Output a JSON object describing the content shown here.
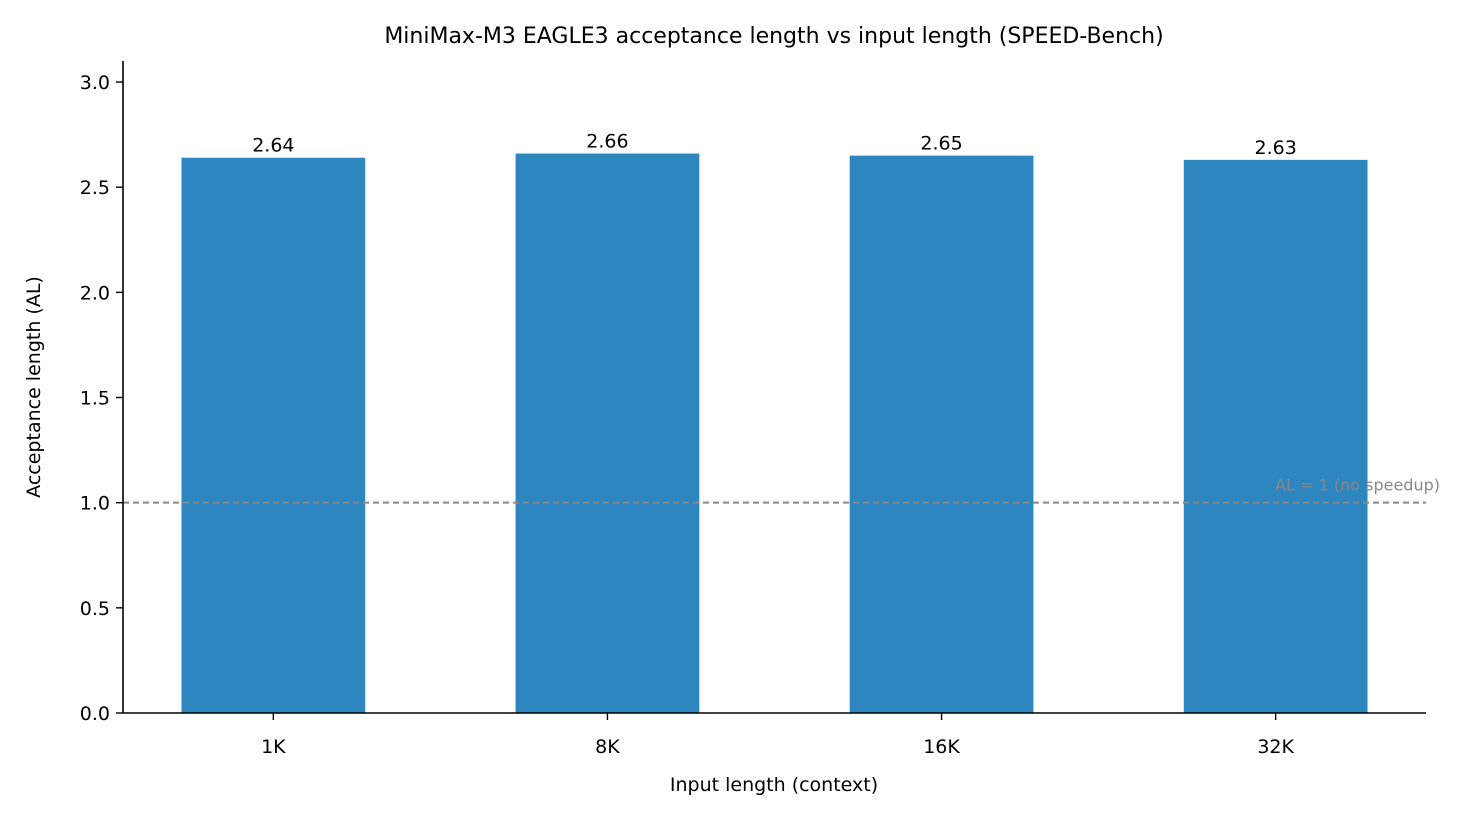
{
  "chart_data": {
    "type": "bar",
    "title": "MiniMax-M3 EAGLE3 acceptance length vs input length (SPEED-Bench)",
    "xlabel": "Input length (context)",
    "ylabel": "Acceptance length (AL)",
    "categories": [
      "1K",
      "8K",
      "16K",
      "32K"
    ],
    "values": [
      2.64,
      2.66,
      2.65,
      2.63
    ],
    "data_labels": [
      "2.64",
      "2.66",
      "2.65",
      "2.63"
    ],
    "ylim": [
      0,
      3.1
    ],
    "yticks": [
      0.0,
      0.5,
      1.0,
      1.5,
      2.0,
      2.5,
      3.0
    ],
    "ytick_labels": [
      "0.0",
      "0.5",
      "1.0",
      "1.5",
      "2.0",
      "2.5",
      "3.0"
    ],
    "bar_color": "#2e86c1",
    "grid": false,
    "reference_line": {
      "y": 1.0,
      "label": "AL = 1 (no speedup)",
      "color": "#888888",
      "style": "dashed"
    }
  }
}
